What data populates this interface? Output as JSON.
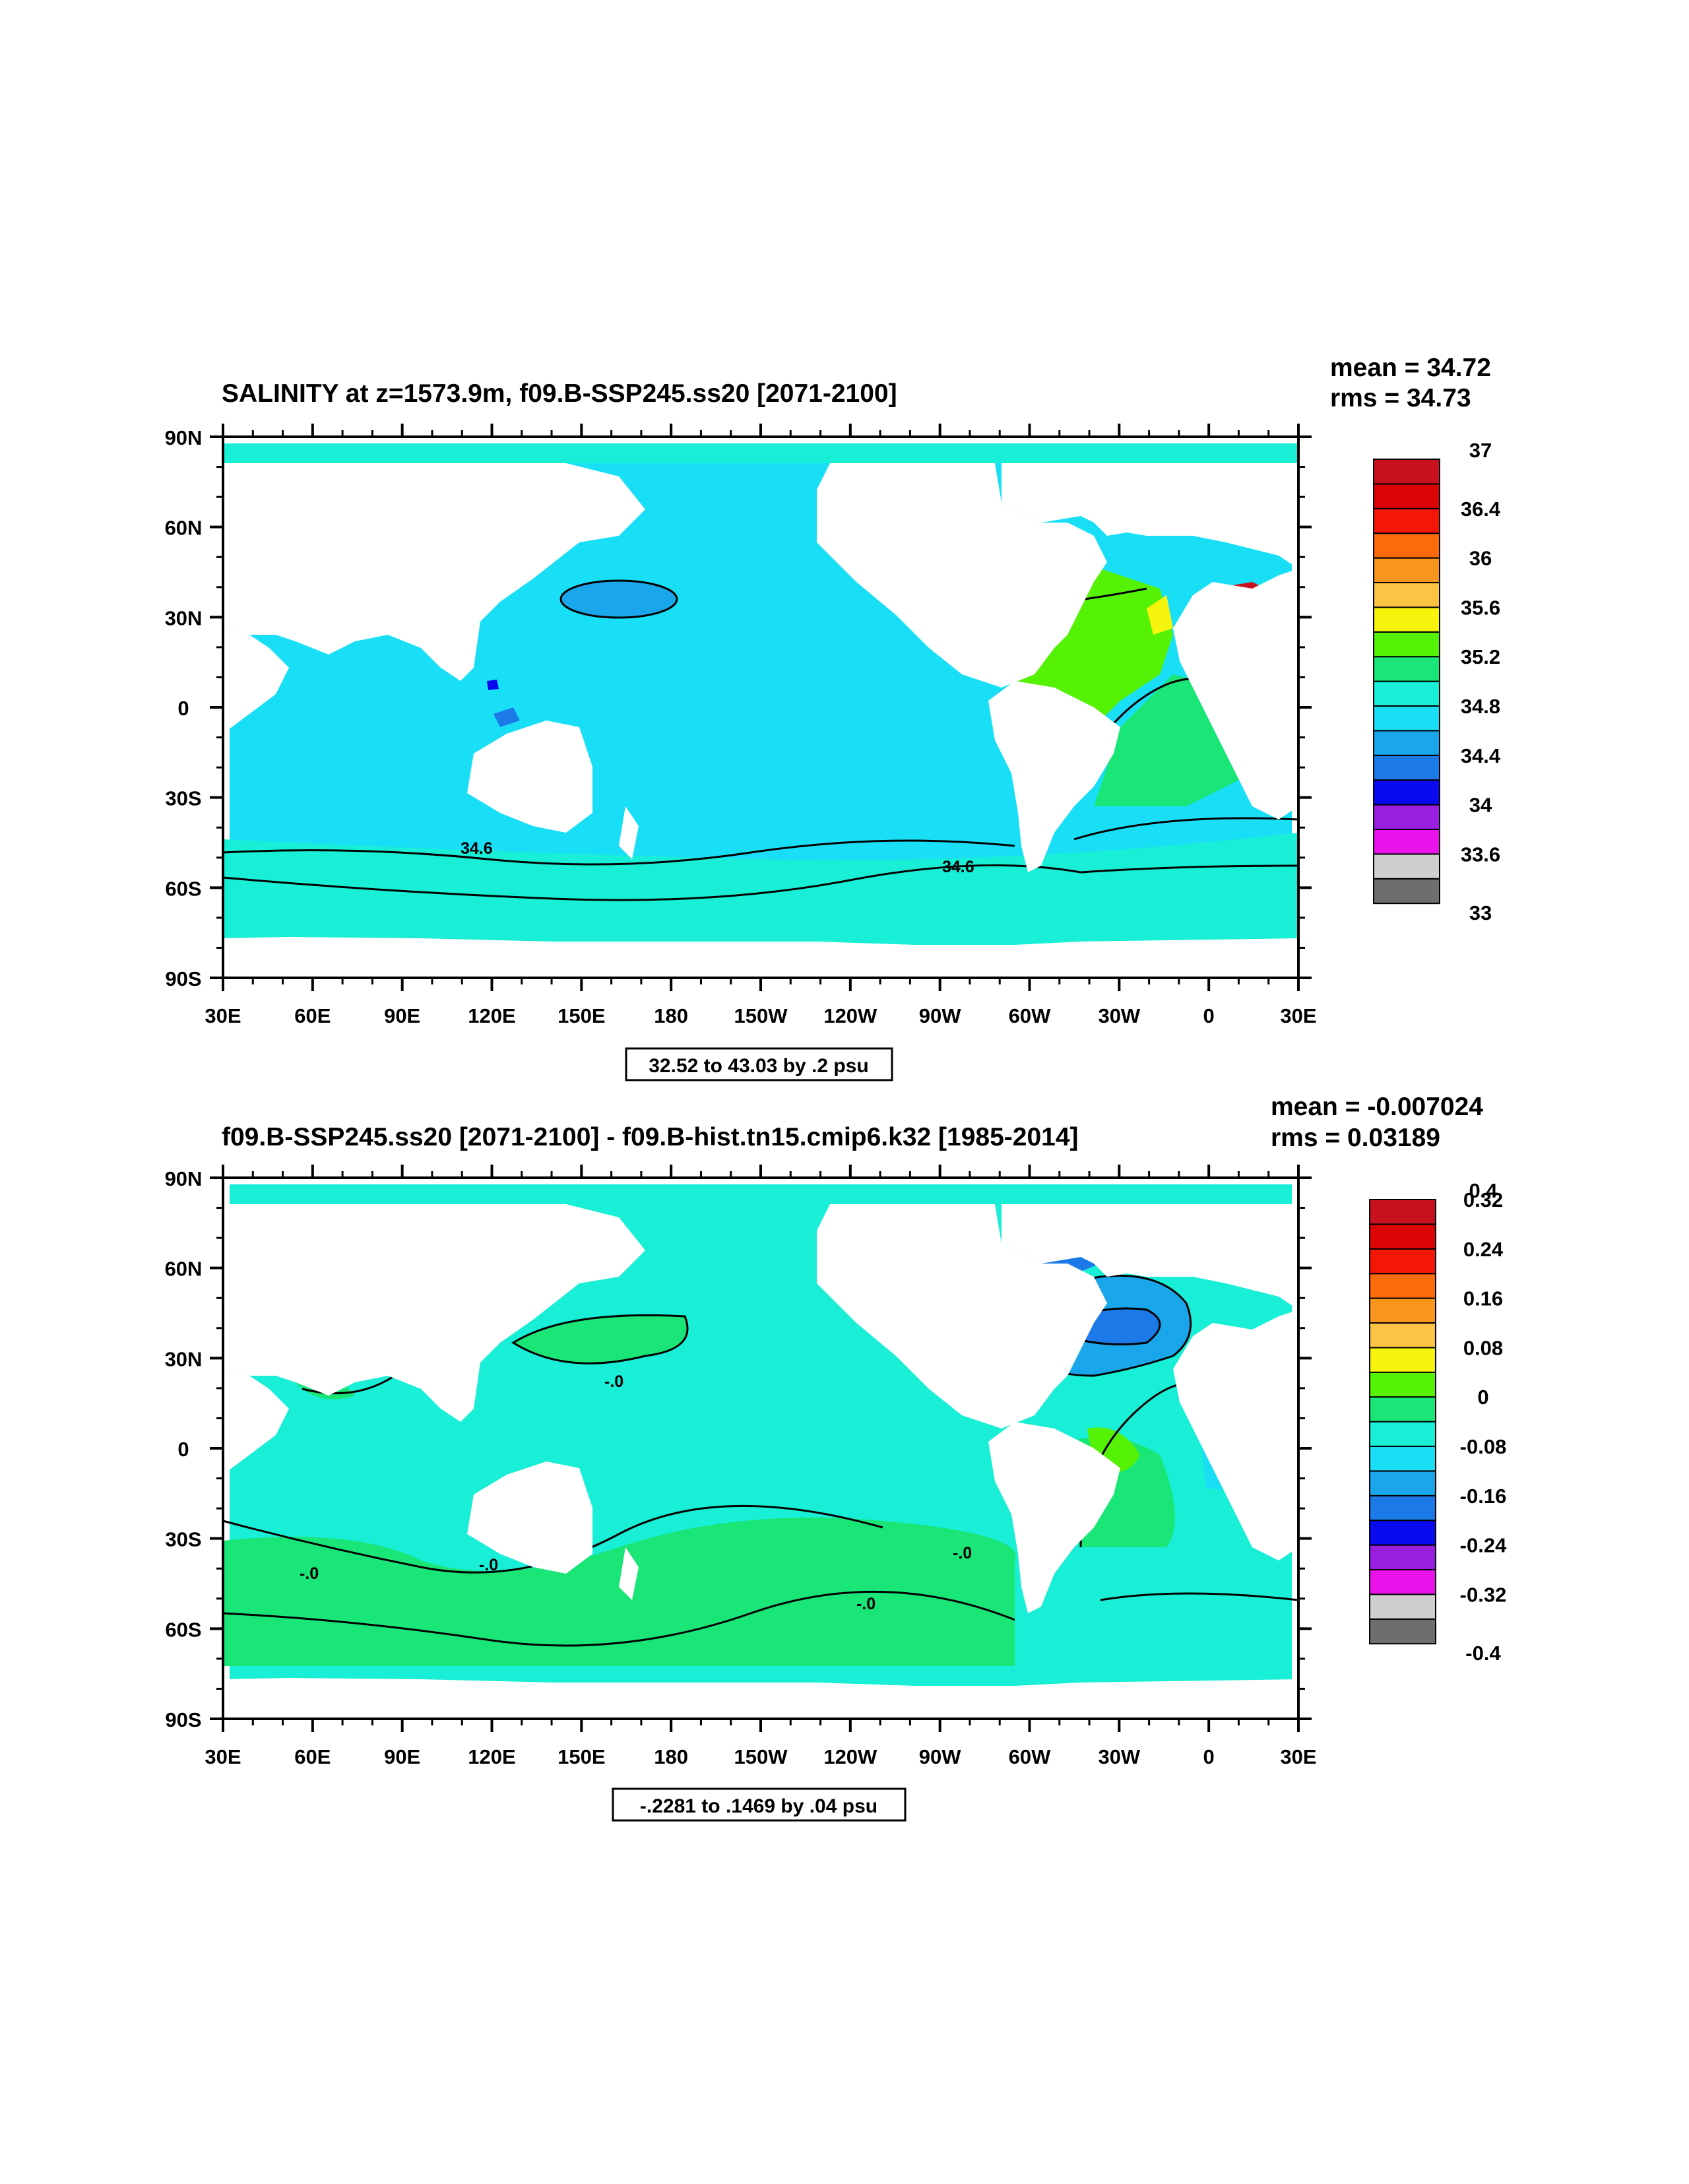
{
  "panels": [
    {
      "title": "SALINITY at z=1573.9m, f09.B-SSP245.ss20 [2071-2100]",
      "mean_label": "mean = 34.72",
      "rms_label": "rms = 34.73",
      "info_label": "32.52 to 43.03 by .2 psu",
      "contour_labels": [
        "34.6",
        "34.6"
      ],
      "colorbar": {
        "colors": [
          "#6e6e6e",
          "#cfcfcf",
          "#ea12ea",
          "#9a1ee0",
          "#0a0af0",
          "#1b7ae8",
          "#1aa6ea",
          "#19dff6",
          "#19eed6",
          "#19e676",
          "#55f206",
          "#f6f40c",
          "#fcc444",
          "#f7951c",
          "#fc6a0c",
          "#f51608",
          "#dc0505",
          "#c8101e"
        ],
        "labels": [
          "33",
          "33.6",
          "34",
          "34.4",
          "34.8",
          "35.2",
          "35.6",
          "36",
          "36.4",
          "37"
        ]
      }
    },
    {
      "title": "f09.B-SSP245.ss20 [2071-2100] - f09.B-hist.tn15.cmip6.k32 [1985-2014]",
      "mean_label": "mean = -0.007024",
      "rms_label": "rms = 0.03189",
      "info_label": "-.2281 to .1469 by .04 psu",
      "contour_labels": [
        "-.0",
        "-.0",
        "-.0",
        "-.0",
        "-.0"
      ],
      "colorbar": {
        "colors": [
          "#6e6e6e",
          "#cfcfcf",
          "#ea12ea",
          "#9a1ee0",
          "#0a0af0",
          "#1b7ae8",
          "#1aa6ea",
          "#19dff6",
          "#19eed6",
          "#19e676",
          "#55f206",
          "#f6f40c",
          "#fcc444",
          "#f7951c",
          "#fc6a0c",
          "#f51608",
          "#dc0505",
          "#c8101e"
        ],
        "labels": [
          "-0.4",
          "-0.32",
          "-0.24",
          "-0.16",
          "-0.08",
          "0",
          "0.08",
          "0.16",
          "0.24",
          "0.32",
          "0.4"
        ]
      }
    }
  ],
  "axes": {
    "lat_labels": [
      "90N",
      "60N",
      "30N",
      "0",
      "30S",
      "60S",
      "90S"
    ],
    "lon_labels": [
      "30E",
      "60E",
      "90E",
      "120E",
      "150E",
      "180",
      "150W",
      "120W",
      "90W",
      "60W",
      "30W",
      "0",
      "30E"
    ]
  },
  "palette": {
    "land": "#ffffff",
    "ocean_top": "#19dff6",
    "ocean_top_south": "#19eed6",
    "ocean_top_atlantic": "#55f206",
    "ocean_bottom": "#19eed6",
    "ocean_bottom_positive": "#19e676",
    "high_anomaly": "#c8101e",
    "negative_anomaly": "#1b7ae8"
  }
}
